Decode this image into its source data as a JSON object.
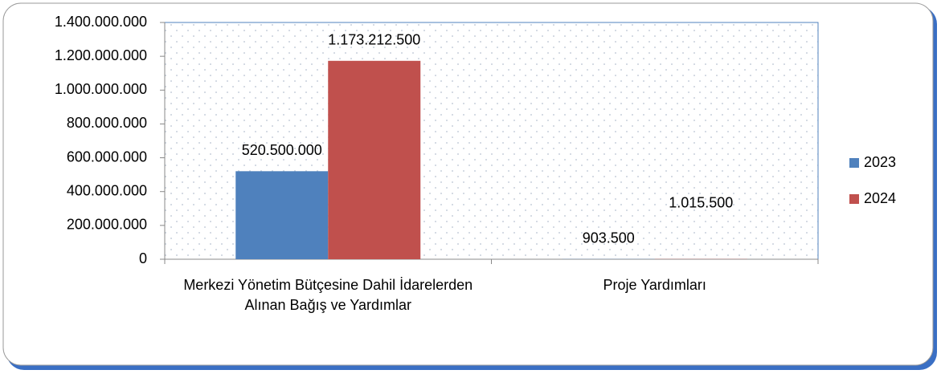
{
  "chart_data": {
    "type": "bar",
    "categories": [
      "Merkezi Yönetim Bütçesine Dahil İdarelerden Alınan Bağış ve Yardımlar",
      "Proje Yardımları"
    ],
    "series": [
      {
        "name": "2023",
        "color": "#4f81bd",
        "values": [
          520500000,
          903500
        ],
        "value_labels": [
          "520.500.000",
          "903.500"
        ]
      },
      {
        "name": "2024",
        "color": "#c0504d",
        "values": [
          1173212500,
          1015500
        ],
        "value_labels": [
          "1.173.212.500",
          "1.015.500"
        ]
      }
    ],
    "ylim": [
      0,
      1400000000
    ],
    "yticks": [
      0,
      {
        "value": 200000000,
        "label": "200.000.000"
      },
      {
        "value": 400000000,
        "label": "400.000.000"
      },
      {
        "value": 600000000,
        "label": "600.000.000"
      },
      {
        "value": 800000000,
        "label": "800.000.000"
      },
      {
        "value": 1000000000,
        "label": "1.000.000.000"
      },
      {
        "value": 1200000000,
        "label": "1.200.000.000"
      },
      {
        "value": 1400000000,
        "label": "1.400.000.000"
      }
    ],
    "legend": "right"
  }
}
